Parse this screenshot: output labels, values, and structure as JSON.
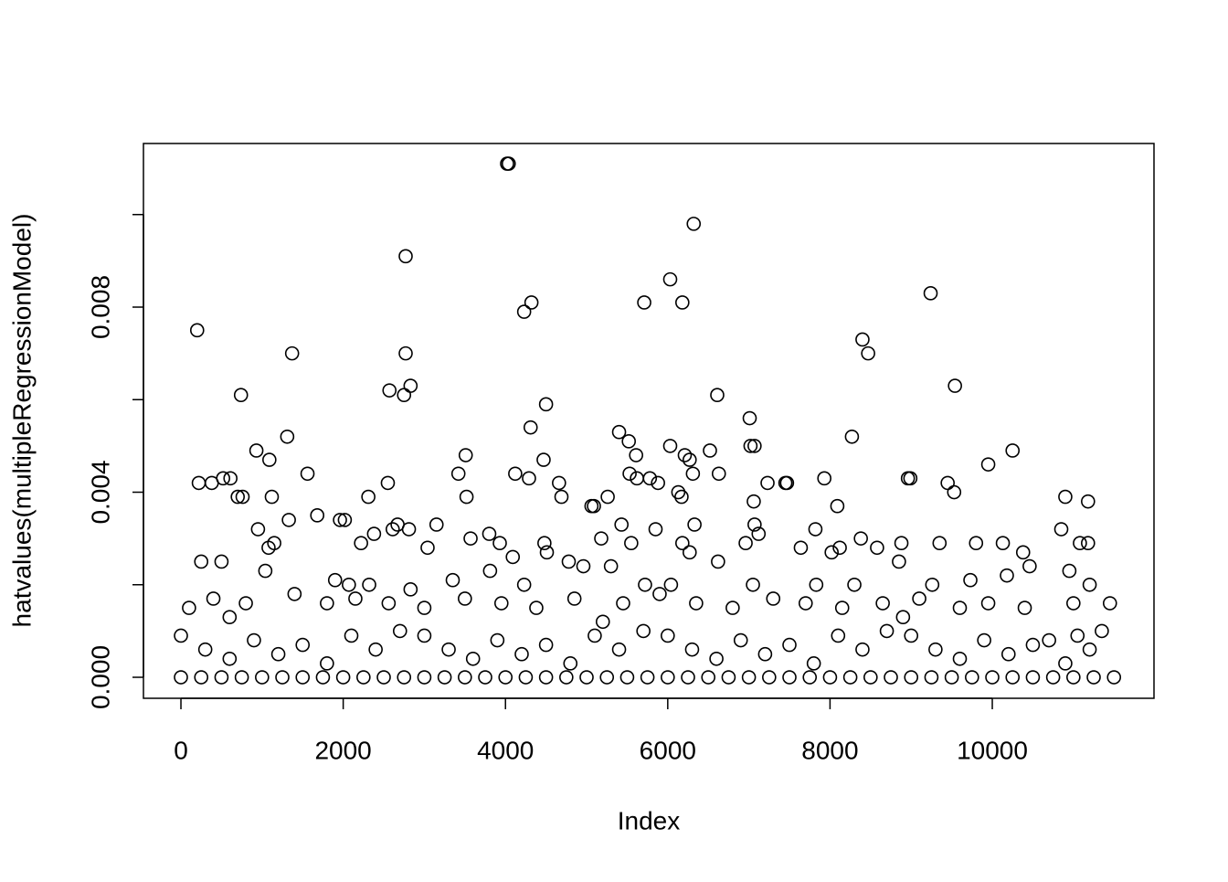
{
  "chart_data": {
    "type": "scatter",
    "xlabel": "Index",
    "ylabel": "hatvalues(multipleRegressionModel)",
    "xlim": [
      -462,
      11993
    ],
    "ylim": [
      -0.000454,
      0.011536
    ],
    "xticks": [
      0,
      2000,
      4000,
      6000,
      8000,
      10000
    ],
    "yticks": [
      {
        "value": 0,
        "label": "0.000"
      },
      {
        "value": 0.002,
        "label": null
      },
      {
        "value": 0.004,
        "label": "0.004"
      },
      {
        "value": 0.006,
        "label": null
      },
      {
        "value": 0.008,
        "label": "0.008"
      },
      {
        "value": 0.01,
        "label": null
      }
    ],
    "color": "#000000",
    "x": [
      4020,
      4040,
      6320,
      2770,
      6030,
      9240,
      4320,
      5710,
      6180,
      4230,
      200,
      8400,
      1370,
      2770,
      8470,
      2830,
      9540,
      2570,
      2750,
      740,
      6610,
      4500,
      7010,
      4310,
      5400,
      1310,
      5520,
      6030,
      7020,
      7070,
      8270,
      6520,
      5610,
      3510,
      930,
      6210,
      6270,
      1090,
      4470,
      9950,
      10250,
      5530,
      3420,
      1560,
      4120,
      6310,
      6630,
      5620,
      5780,
      7450,
      7470,
      7230,
      8990,
      8960,
      7930,
      9450,
      9530,
      220,
      380,
      520,
      610,
      2550,
      4290,
      4660,
      5880,
      700,
      760,
      1120,
      2310,
      3520,
      4690,
      5260,
      6130,
      6170,
      5060,
      5090,
      7060,
      8090,
      10900,
      11180,
      1680,
      1330,
      1960,
      2020,
      3150,
      5430,
      6330,
      7070,
      7820,
      10850,
      950,
      1080,
      1150,
      2220,
      2380,
      2610,
      2670,
      2810,
      3040,
      3800,
      3570,
      3930,
      4090,
      4480,
      4510,
      5180,
      5550,
      5850,
      6180,
      6270,
      6960,
      7120,
      7640,
      8020,
      8120,
      8380,
      8580,
      8880,
      9350,
      9800,
      10130,
      10380,
      11080,
      11180,
      250,
      500,
      1040,
      1900,
      2070,
      2320,
      2830,
      3350,
      3810,
      4230,
      4780,
      4960,
      5300,
      5720,
      6040,
      6620,
      7050,
      7830,
      8300,
      8850,
      9260,
      9730,
      10180,
      10460,
      10950,
      11200,
      100,
      400,
      800,
      1400,
      1800,
      2150,
      2560,
      3000,
      3500,
      3950,
      4380,
      4850,
      5450,
      5900,
      6350,
      6800,
      7300,
      7700,
      8150,
      8650,
      9100,
      9600,
      9950,
      10400,
      10700,
      11000,
      11450,
      600,
      5200,
      8900,
      0,
      300,
      600,
      900,
      1200,
      1500,
      1800,
      2100,
      2400,
      2700,
      3000,
      3300,
      3600,
      3900,
      4200,
      4500,
      4800,
      5100,
      5400,
      5700,
      6000,
      6300,
      6600,
      6900,
      7200,
      7500,
      7800,
      8100,
      8400,
      8700,
      9000,
      9300,
      9600,
      9900,
      10200,
      10500,
      10900,
      11050,
      11200,
      11350,
      0,
      250,
      500,
      750,
      1000,
      1250,
      1500,
      1750,
      2000,
      2250,
      2500,
      2750,
      3000,
      3250,
      3500,
      3750,
      4000,
      4250,
      4500,
      4750,
      5000,
      5250,
      5500,
      5750,
      6000,
      6250,
      6500,
      6750,
      7000,
      7250,
      7500,
      7750,
      8000,
      8250,
      8500,
      8750,
      9000,
      9250,
      9500,
      9750,
      10000,
      10250,
      10500,
      10750,
      11000,
      11250,
      11500
    ],
    "values": [
      0.0111,
      0.0111,
      0.0098,
      0.0091,
      0.0086,
      0.0083,
      0.0081,
      0.0081,
      0.0081,
      0.0079,
      0.0075,
      0.0073,
      0.007,
      0.007,
      0.007,
      0.0063,
      0.0063,
      0.0062,
      0.0061,
      0.0061,
      0.0061,
      0.0059,
      0.0056,
      0.0054,
      0.0053,
      0.0052,
      0.0051,
      0.005,
      0.005,
      0.005,
      0.0052,
      0.0049,
      0.0048,
      0.0048,
      0.0049,
      0.0048,
      0.0047,
      0.0047,
      0.0047,
      0.0046,
      0.0049,
      0.0044,
      0.0044,
      0.0044,
      0.0044,
      0.0044,
      0.0044,
      0.0043,
      0.0043,
      0.0042,
      0.0042,
      0.0042,
      0.0043,
      0.0043,
      0.0043,
      0.0042,
      0.004,
      0.0042,
      0.0042,
      0.0043,
      0.0043,
      0.0042,
      0.0043,
      0.0042,
      0.0042,
      0.0039,
      0.0039,
      0.0039,
      0.0039,
      0.0039,
      0.0039,
      0.0039,
      0.004,
      0.0039,
      0.0037,
      0.0037,
      0.0038,
      0.0037,
      0.0039,
      0.0038,
      0.0035,
      0.0034,
      0.0034,
      0.0034,
      0.0033,
      0.0033,
      0.0033,
      0.0033,
      0.0032,
      0.0032,
      0.0032,
      0.0028,
      0.0029,
      0.0029,
      0.0031,
      0.0032,
      0.0033,
      0.0032,
      0.0028,
      0.0031,
      0.003,
      0.0029,
      0.0026,
      0.0029,
      0.0027,
      0.003,
      0.0029,
      0.0032,
      0.0029,
      0.0027,
      0.0029,
      0.0031,
      0.0028,
      0.0027,
      0.0028,
      0.003,
      0.0028,
      0.0029,
      0.0029,
      0.0029,
      0.0029,
      0.0027,
      0.0029,
      0.0029,
      0.0025,
      0.0025,
      0.0023,
      0.0021,
      0.002,
      0.002,
      0.0019,
      0.0021,
      0.0023,
      0.002,
      0.0025,
      0.0024,
      0.0024,
      0.002,
      0.002,
      0.0025,
      0.002,
      0.002,
      0.002,
      0.0025,
      0.002,
      0.0021,
      0.0022,
      0.0024,
      0.0023,
      0.002,
      0.0015,
      0.0017,
      0.0016,
      0.0018,
      0.0016,
      0.0017,
      0.0016,
      0.0015,
      0.0017,
      0.0016,
      0.0015,
      0.0017,
      0.0016,
      0.0018,
      0.0016,
      0.0015,
      0.0017,
      0.0016,
      0.0015,
      0.0016,
      0.0017,
      0.0015,
      0.0016,
      0.0015,
      0.0008,
      0.0016,
      0.0016,
      0.0013,
      0.0012,
      0.0013,
      0.0009,
      0.0006,
      0.0004,
      0.0008,
      0.0005,
      0.0007,
      0.0003,
      0.0009,
      0.0006,
      0.001,
      0.0009,
      0.0006,
      0.0004,
      0.0008,
      0.0005,
      0.0007,
      0.0003,
      0.0009,
      0.0006,
      0.001,
      0.0009,
      0.0006,
      0.0004,
      0.0008,
      0.0005,
      0.0007,
      0.0003,
      0.0009,
      0.0006,
      0.001,
      0.0009,
      0.0006,
      0.0004,
      0.0008,
      0.0005,
      0.0007,
      0.0003,
      0.0009,
      0.0006,
      0.001,
      0,
      0,
      0,
      0,
      0,
      0,
      0,
      0,
      0,
      0,
      0,
      0,
      0,
      0,
      0,
      0,
      0,
      0,
      0,
      0,
      0,
      0,
      0,
      0,
      0,
      0,
      0,
      0,
      0,
      0,
      0,
      0,
      0,
      0,
      0,
      0,
      0,
      0,
      0,
      0,
      0,
      0,
      0,
      0,
      0,
      0,
      0
    ]
  }
}
